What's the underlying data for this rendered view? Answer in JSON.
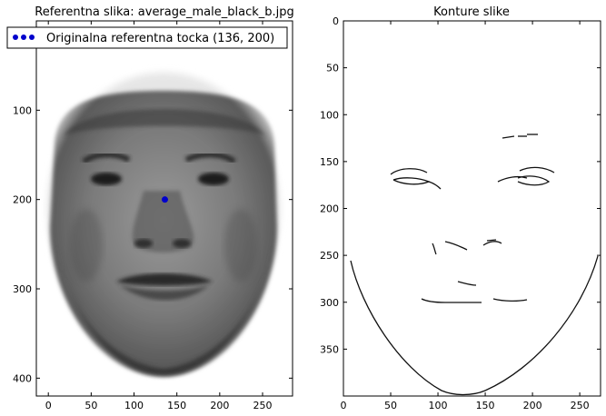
{
  "chart_data": [
    {
      "type": "image",
      "title": "Referentna slika: average_male_black_b.jpg",
      "xlim": [
        -14,
        285
      ],
      "ylim": [
        420,
        0
      ],
      "xticks": [
        0,
        50,
        100,
        150,
        200,
        250
      ],
      "yticks": [
        100,
        200,
        300,
        400
      ],
      "legend": {
        "placement": "top-left",
        "entries": [
          {
            "label": "Originalna referentna tocka (136, 200)",
            "marker": "circle",
            "color": "#0000cc"
          }
        ]
      },
      "points": [
        {
          "x": 136,
          "y": 200
        }
      ],
      "image_content": "grayscale average face"
    },
    {
      "type": "image",
      "title": "Konture slike",
      "xlim": [
        0,
        272
      ],
      "ylim": [
        400,
        0
      ],
      "xticks": [
        0,
        50,
        100,
        150,
        200,
        250
      ],
      "yticks": [
        0,
        50,
        100,
        150,
        200,
        250,
        300,
        350
      ],
      "image_content": "edge contours of face"
    }
  ]
}
